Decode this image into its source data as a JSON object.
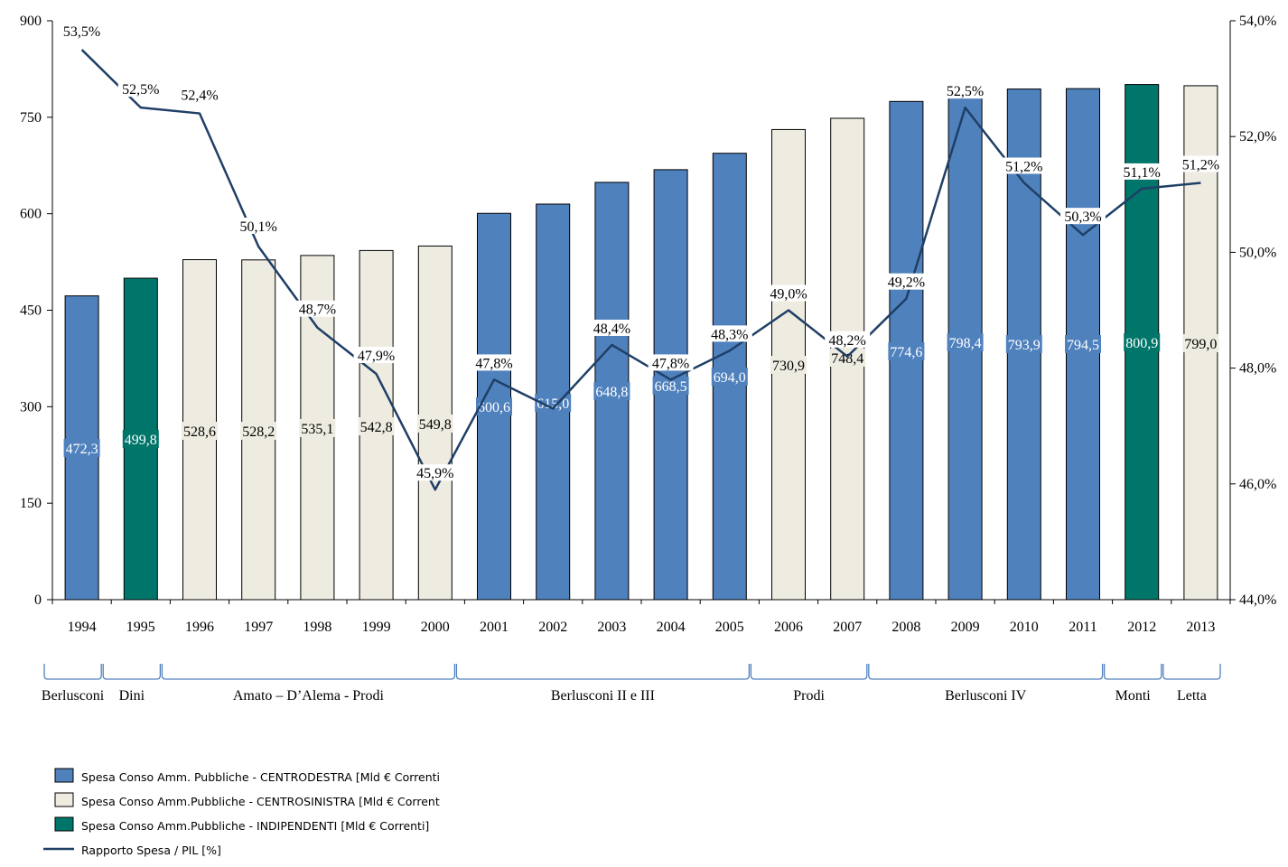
{
  "chart_data": {
    "type": "bar",
    "categories": [
      "1994",
      "1995",
      "1996",
      "1997",
      "1998",
      "1999",
      "2000",
      "2001",
      "2002",
      "2003",
      "2004",
      "2005",
      "2006",
      "2007",
      "2008",
      "2009",
      "2010",
      "2011",
      "2012",
      "2013"
    ],
    "bar_values": [
      472.3,
      499.8,
      528.6,
      528.2,
      535.1,
      542.8,
      549.8,
      600.6,
      615.0,
      648.8,
      668.5,
      694.0,
      730.9,
      748.4,
      774.6,
      798.4,
      793.9,
      794.5,
      800.9,
      799.0
    ],
    "bar_labels": [
      "472,3",
      "499,8",
      "528,6",
      "528,2",
      "535,1",
      "542,8",
      "549,8",
      "600,6",
      "615,0",
      "648,8",
      "668,5",
      "694,0",
      "730,9",
      "748,4",
      "774,6",
      "798,4",
      "793,9",
      "794,5",
      "800,9",
      "799,0"
    ],
    "bar_groups": [
      "cd",
      "ind",
      "cs",
      "cs",
      "cs",
      "cs",
      "cs",
      "cd",
      "cd",
      "cd",
      "cd",
      "cd",
      "cs",
      "cs",
      "cd",
      "cd",
      "cd",
      "cd",
      "ind",
      "cs"
    ],
    "ratio_values": [
      53.5,
      52.5,
      52.4,
      50.1,
      48.7,
      47.9,
      45.9,
      47.8,
      47.3,
      48.4,
      47.8,
      48.3,
      49.0,
      48.2,
      49.2,
      52.5,
      51.2,
      50.3,
      51.1,
      51.2
    ],
    "ratio_labels": [
      "53,5%",
      "52,5%",
      "52,4%",
      "50,1%",
      "48,7%",
      "47,9%",
      "45,9%",
      "47,8%",
      "",
      "48,4%",
      "47,8%",
      "48,3%",
      "49,0%",
      "48,2%",
      "49,2%",
      "52,5%",
      "51,2%",
      "50,3%",
      "51,1%",
      "51,2%"
    ],
    "ylim_left": [
      0,
      900
    ],
    "yticks_left": [
      "0",
      "150",
      "300",
      "450",
      "600",
      "750",
      "900"
    ],
    "ylim_right": [
      44,
      54
    ],
    "yticks_right": [
      "44,0%",
      "46,0%",
      "48,0%",
      "50,0%",
      "52,0%",
      "54,0%"
    ],
    "governments": [
      {
        "name": "Berlusconi",
        "start": 0,
        "end": 0
      },
      {
        "name": "Dini",
        "start": 1,
        "end": 1
      },
      {
        "name": "Amato – D’Alema  - Prodi",
        "start": 2,
        "end": 6
      },
      {
        "name": "Berlusconi II e III",
        "start": 7,
        "end": 11
      },
      {
        "name": "Prodi",
        "start": 12,
        "end": 13
      },
      {
        "name": "Berlusconi IV",
        "start": 14,
        "end": 17
      },
      {
        "name": "Monti",
        "start": 18,
        "end": 18
      },
      {
        "name": "Letta",
        "start": 19,
        "end": 19
      }
    ],
    "colors": {
      "cd": "#4f81bd",
      "cs": "#eeece1",
      "ind": "#00766a",
      "line": "#1f3f66"
    },
    "legend": [
      {
        "key": "cd",
        "label": "Spesa Conso Amm. Pubbliche  - CENTRODESTRA [Mld € Correnti"
      },
      {
        "key": "cs",
        "label": "Spesa Conso Amm.Pubbliche  - CENTROSINISTRA [Mld € Corrent"
      },
      {
        "key": "ind",
        "label": "Spesa Conso Amm.Pubbliche  - INDIPENDENTI [Mld € Correnti]"
      },
      {
        "key": "line",
        "label": "Rapporto  Spesa / PIL [%]"
      }
    ],
    "legend_position": "bottom-left",
    "grid": false
  }
}
